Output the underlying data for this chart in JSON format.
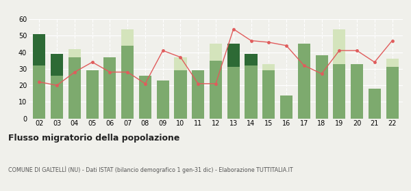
{
  "years": [
    "02",
    "03",
    "04",
    "05",
    "06",
    "07",
    "08",
    "09",
    "10",
    "11",
    "12",
    "13",
    "14",
    "15",
    "16",
    "17",
    "18",
    "19",
    "20",
    "21",
    "22"
  ],
  "iscritti_comuni": [
    32,
    26,
    37,
    29,
    37,
    44,
    26,
    23,
    29,
    29,
    35,
    31,
    32,
    29,
    14,
    45,
    38,
    33,
    33,
    18,
    31
  ],
  "iscritti_estero": [
    0,
    0,
    5,
    0,
    0,
    10,
    0,
    0,
    8,
    0,
    10,
    0,
    0,
    4,
    0,
    0,
    0,
    21,
    0,
    0,
    5
  ],
  "iscritti_altri": [
    19,
    13,
    0,
    0,
    0,
    0,
    0,
    0,
    0,
    0,
    0,
    14,
    7,
    0,
    0,
    0,
    0,
    0,
    0,
    0,
    0
  ],
  "cancellati": [
    22,
    20,
    28,
    34,
    28,
    28,
    21,
    41,
    37,
    21,
    21,
    54,
    47,
    46,
    44,
    32,
    27,
    41,
    41,
    34,
    47
  ],
  "color_comuni": "#7daa6e",
  "color_estero": "#d4e4bc",
  "color_altri": "#2d6a35",
  "color_cancellati": "#e05c5c",
  "title": "Flusso migratorio della popolazione",
  "subtitle": "COMUNE DI GALTELLÌ (NU) - Dati ISTAT (bilancio demografico 1 gen-31 dic) - Elaborazione TUTTITALIA.IT",
  "ylim": [
    0,
    60
  ],
  "yticks": [
    0,
    10,
    20,
    30,
    40,
    50,
    60
  ],
  "bg_color": "#f0f0eb"
}
